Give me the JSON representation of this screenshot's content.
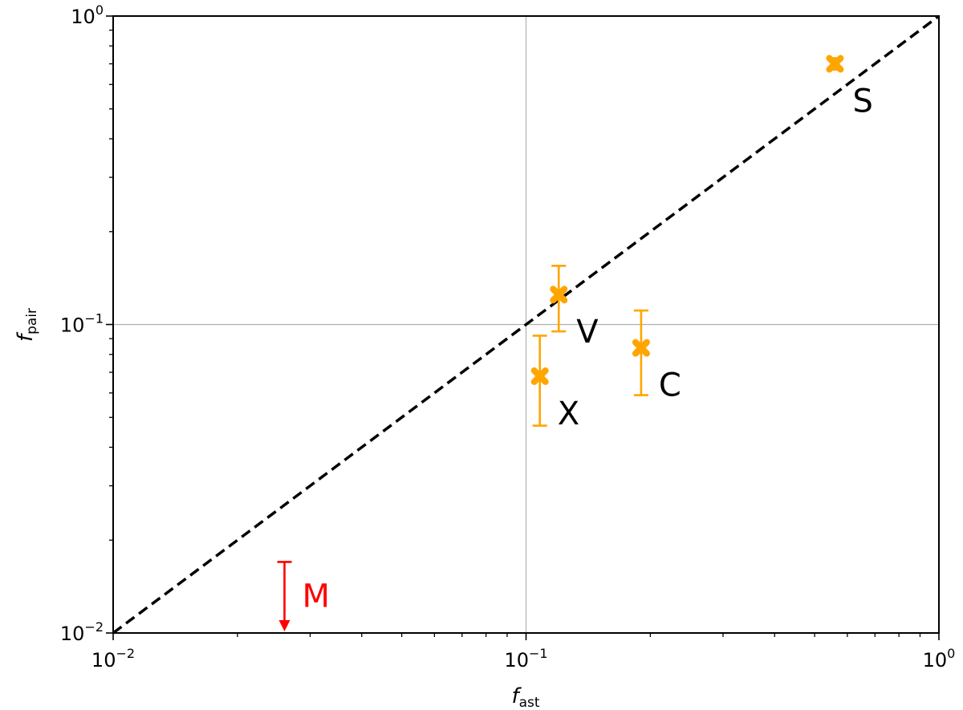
{
  "chart_data": {
    "type": "scatter",
    "xscale": "log",
    "yscale": "log",
    "xlim": [
      0.01,
      1
    ],
    "ylim": [
      0.01,
      1
    ],
    "grid": "major",
    "xlabel": {
      "main": "f",
      "sub": "ast"
    },
    "ylabel": {
      "main": "f",
      "sub": "pair"
    },
    "x_ticks": [
      {
        "value": 0.01,
        "base": "10",
        "exp": "−2"
      },
      {
        "value": 0.1,
        "base": "10",
        "exp": "−1"
      },
      {
        "value": 1,
        "base": "10",
        "exp": "0"
      }
    ],
    "y_ticks": [
      {
        "value": 0.01,
        "base": "10",
        "exp": "−2"
      },
      {
        "value": 0.1,
        "base": "10",
        "exp": "−1"
      },
      {
        "value": 1,
        "base": "10",
        "exp": "0"
      }
    ],
    "reference_line": {
      "style": "dashed",
      "color": "#000000",
      "x": [
        0.01,
        1
      ],
      "y": [
        0.01,
        1
      ]
    },
    "points": [
      {
        "label": "S",
        "x": 0.56,
        "y": 0.7,
        "yerr_low": 0.67,
        "yerr_high": 0.73,
        "color": "#ffa500"
      },
      {
        "label": "V",
        "x": 0.12,
        "y": 0.125,
        "yerr_low": 0.095,
        "yerr_high": 0.155,
        "color": "#ffa500"
      },
      {
        "label": "X",
        "x": 0.108,
        "y": 0.068,
        "yerr_low": 0.047,
        "yerr_high": 0.092,
        "color": "#ffa500"
      },
      {
        "label": "C",
        "x": 0.19,
        "y": 0.084,
        "yerr_low": 0.059,
        "yerr_high": 0.111,
        "color": "#ffa500"
      }
    ],
    "upper_limits": [
      {
        "label": "M",
        "x": 0.026,
        "y": 0.017,
        "color": "#ff0000"
      }
    ]
  }
}
